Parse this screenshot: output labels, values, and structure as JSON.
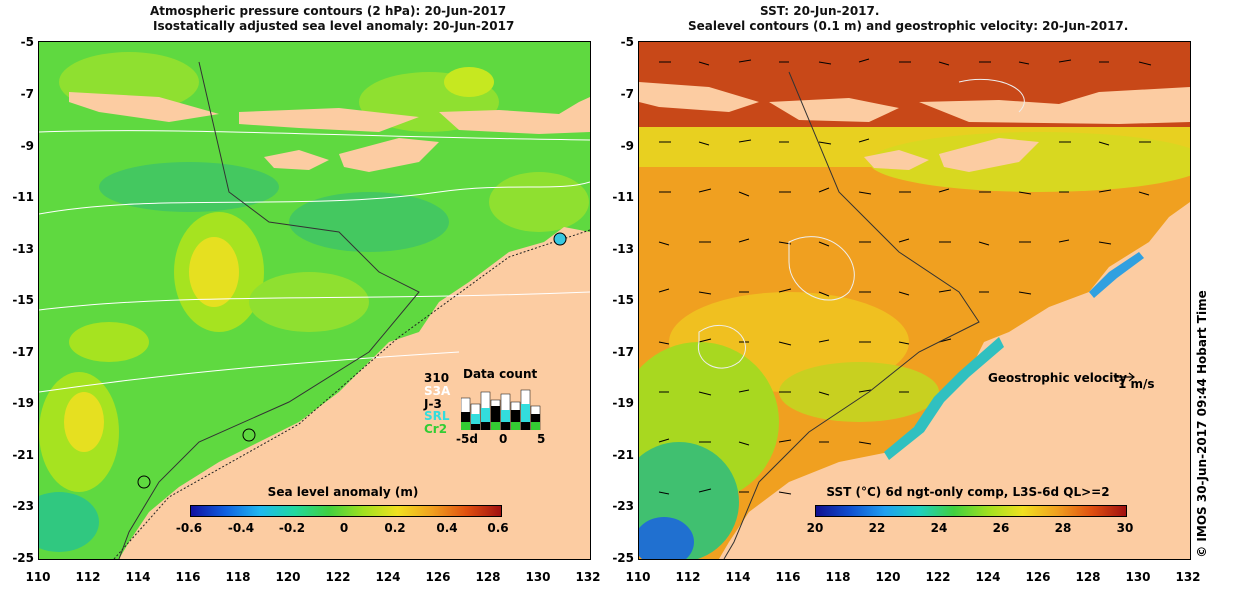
{
  "left_panel": {
    "title_line1": "Atmospheric pressure contours (2 hPa): 20-Jun-2017",
    "title_line2": "Isostatically adjusted sea level anomaly: 20-Jun-2017",
    "colorbar": {
      "title": "Sea level anomaly (m)",
      "ticks": [
        "-0.6",
        "-0.4",
        "-0.2",
        "0",
        "0.2",
        "0.4",
        "0.6"
      ]
    },
    "data_count": {
      "title": "Data count",
      "labels": [
        "310",
        "S3A",
        "J-3",
        "SRL",
        "Cr2"
      ],
      "label_colors": [
        "#000000",
        "#ffffff",
        "#000000",
        "#33dddd",
        "#33cc33"
      ],
      "axis_ticks": [
        "-5d",
        "0",
        "5"
      ]
    }
  },
  "right_panel": {
    "title_line1": "SST: 20-Jun-2017.",
    "title_line2": "Sealevel contours (0.1 m) and geostrophic velocity: 20-Jun-2017.",
    "colorbar": {
      "title": "SST (°C) 6d ngt-only comp, L3S-6d QL>=2",
      "ticks": [
        "20",
        "22",
        "24",
        "26",
        "28",
        "30"
      ]
    },
    "velocity_legend": {
      "label": "Geostrophic velocity",
      "unit": "1 m/s"
    },
    "credit": "© IMOS 30-Jun-2017 09:44 Hobart Time"
  },
  "axes": {
    "y_ticks": [
      "-5",
      "-7",
      "-9",
      "-11",
      "-13",
      "-15",
      "-17",
      "-19",
      "-21",
      "-23",
      "-25"
    ],
    "x_ticks": [
      "110",
      "112",
      "114",
      "116",
      "118",
      "120",
      "122",
      "124",
      "126",
      "128",
      "130",
      "132"
    ]
  },
  "colors": {
    "land": "#fccca2",
    "sla_main": "#5fd940",
    "sst_main": "#f0a020"
  }
}
